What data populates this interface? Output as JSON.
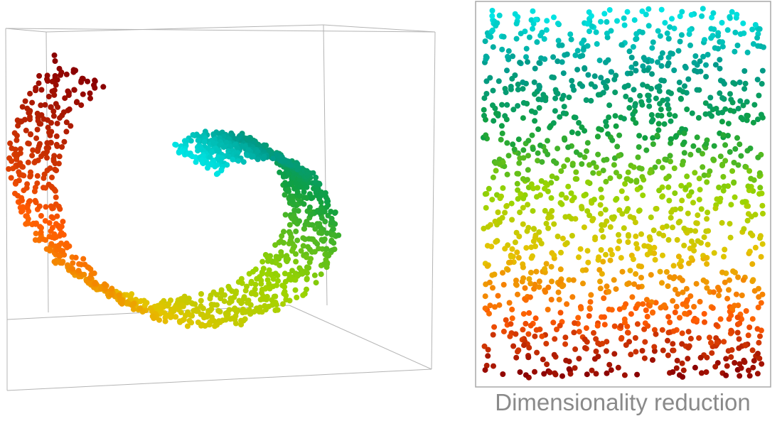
{
  "caption": "Dimensionality reduction",
  "colors": {
    "box_edges": "#b4b4b4",
    "panel_border": "#a8a8a8",
    "caption": "#8a8a8a",
    "gradient_stops": [
      "#00e6e6",
      "#009a8a",
      "#10a040",
      "#9ad400",
      "#e4c400",
      "#ff5a00",
      "#8a0000"
    ]
  },
  "chart_data": [
    {
      "type": "scatter",
      "dimensions": 3,
      "shape": "swiss roll",
      "color_parameter": "position along the roll, cyan at the inner end to dark red at the outer end",
      "t_range": [
        0,
        1
      ],
      "height_range": [
        0,
        1
      ],
      "point_count": 1400
    },
    {
      "type": "scatter",
      "dimensions": 2,
      "shape": "unrolled rectangle",
      "color_parameter": "vertical position, cyan at the top to dark red at the bottom",
      "x_range": [
        0,
        1
      ],
      "y_range": [
        0,
        1
      ],
      "point_count": 1400
    }
  ]
}
